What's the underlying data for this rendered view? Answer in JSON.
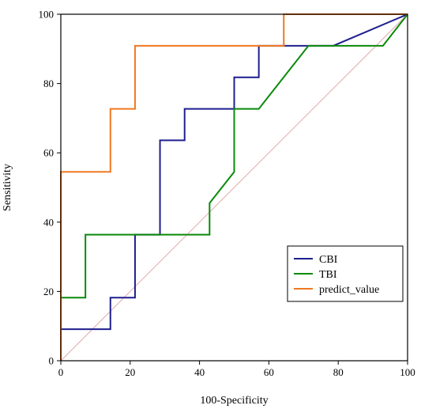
{
  "chart_data": {
    "type": "line",
    "xlabel": "100-Specificity",
    "ylabel": "Sensitivity",
    "xlim": [
      0,
      100
    ],
    "ylim": [
      0,
      100
    ],
    "xticks": [
      0,
      20,
      40,
      60,
      80,
      100
    ],
    "yticks": [
      0,
      20,
      40,
      60,
      80,
      100
    ],
    "grid": false,
    "legend_position": "bottom-right",
    "reference_line": {
      "x": [
        0,
        100
      ],
      "y": [
        0,
        100
      ],
      "color": "#e3a9a9"
    },
    "series": [
      {
        "name": "CBI",
        "color": "#1f1f8f",
        "x": [
          0,
          0,
          14.3,
          14.3,
          21.4,
          21.4,
          28.6,
          28.6,
          35.7,
          35.7,
          50,
          50,
          57.1,
          57.1,
          78.6,
          100
        ],
        "y": [
          0,
          9.1,
          9.1,
          18.2,
          18.2,
          36.4,
          36.4,
          63.6,
          63.6,
          72.7,
          72.7,
          81.8,
          81.8,
          90.9,
          90.9,
          100
        ]
      },
      {
        "name": "TBI",
        "color": "#0a8a0a",
        "x": [
          0,
          0,
          7.1,
          7.1,
          42.9,
          42.9,
          50,
          50,
          57.1,
          71.4,
          92.9,
          100
        ],
        "y": [
          0,
          18.2,
          18.2,
          36.4,
          36.4,
          45.5,
          54.5,
          72.7,
          72.7,
          90.9,
          90.9,
          100
        ]
      },
      {
        "name": "predict_value",
        "color": "#f07820",
        "x": [
          0,
          0,
          14.3,
          14.3,
          21.4,
          21.4,
          64.3,
          64.3,
          100
        ],
        "y": [
          0,
          54.5,
          54.5,
          72.7,
          72.7,
          90.9,
          90.9,
          100,
          100
        ]
      }
    ]
  }
}
